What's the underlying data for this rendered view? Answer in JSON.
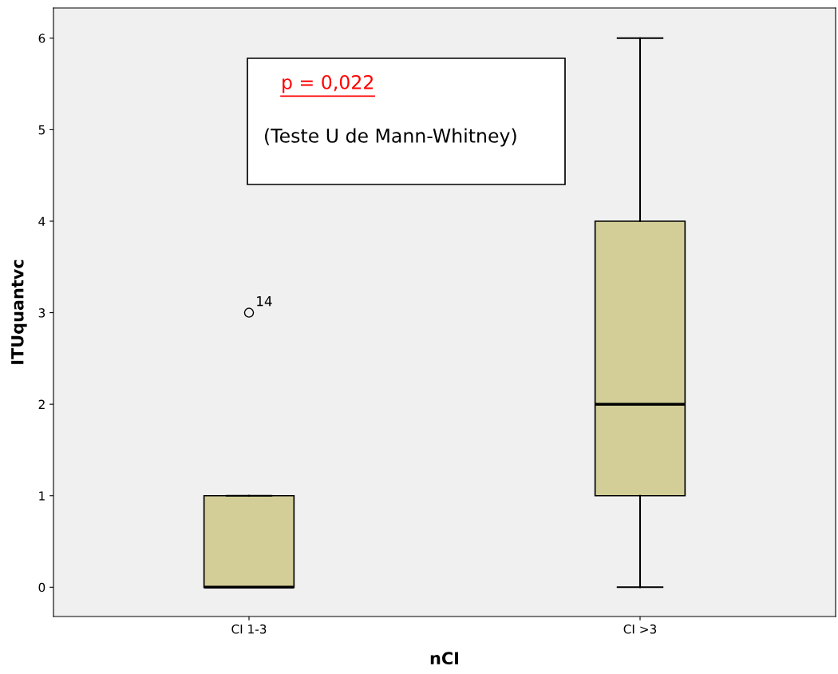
{
  "chart_data": {
    "type": "box",
    "xlabel": "nCI",
    "ylabel": "ITUquantvc",
    "categories": [
      "CI 1-3",
      "CI >3"
    ],
    "color": "#d3ce97",
    "boxes": [
      {
        "low": 0,
        "q1": 0,
        "median": 0,
        "q3": 1,
        "high": 1,
        "outliers": [
          3
        ]
      },
      {
        "low": 0,
        "q1": 1,
        "median": 2,
        "q3": 4,
        "high": 6
      }
    ],
    "ylim": [
      -0.32,
      6.33
    ],
    "yticks": [
      0,
      1,
      2,
      3,
      4,
      5,
      6
    ],
    "grid": false,
    "annotations": [
      "p = 0,022",
      "(Teste U de Mann-Whitney)",
      "14"
    ]
  }
}
